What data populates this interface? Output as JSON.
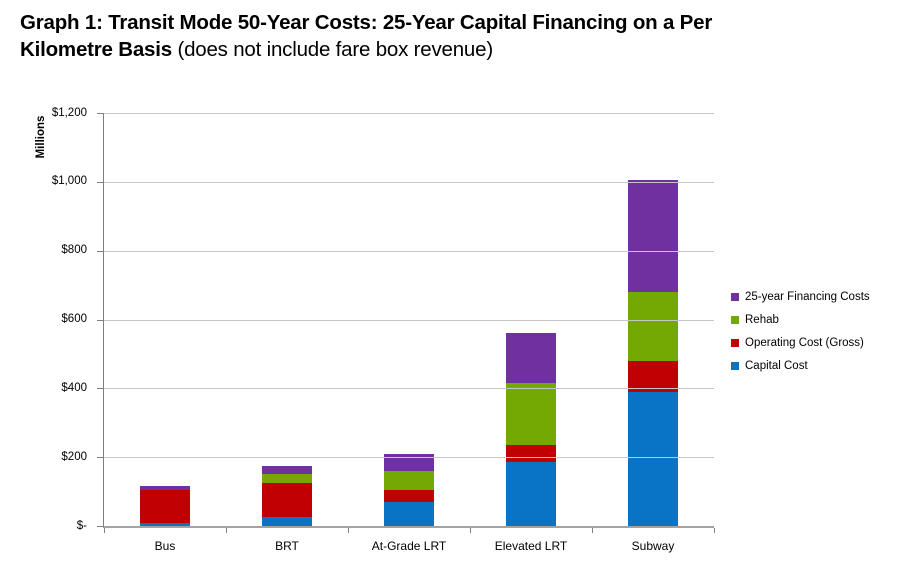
{
  "title": {
    "line1_bold": "Graph 1: Transit Mode 50-Year Costs: 25-Year Capital Financing on a Per",
    "line2_bold": "Kilometre Basis",
    "line2_normal": " (does not include fare box revenue)"
  },
  "chart_data": {
    "type": "bar",
    "stacked": true,
    "title": "Graph 1: Transit Mode 50-Year Costs: 25-Year Capital Financing on a Per Kilometre Basis (does not include fare box revenue)",
    "categories": [
      "Bus",
      "BRT",
      "At-Grade LRT",
      "Elevated LRT",
      "Subway"
    ],
    "series": [
      {
        "name": "Capital Cost",
        "color": "#0A74C4",
        "values": [
          8,
          25,
          70,
          185,
          390
        ]
      },
      {
        "name": "Operating Cost (Gross)",
        "color": "#C00000",
        "values": [
          98,
          100,
          35,
          50,
          90
        ]
      },
      {
        "name": "Rehab",
        "color": "#74A802",
        "values": [
          0,
          25,
          55,
          180,
          200
        ]
      },
      {
        "name": "25-year Financing Costs",
        "color": "#7030A0",
        "values": [
          9,
          25,
          50,
          145,
          325
        ]
      }
    ],
    "totals_est": [
      115,
      175,
      210,
      560,
      1005
    ],
    "ylabel": "Millions",
    "y_ticks": [
      "$1,200",
      "$1,000",
      "$800",
      "$600",
      "$400",
      "$200",
      "$-"
    ],
    "ylim": [
      0,
      1200
    ],
    "grid": true,
    "grid_color": "#C6C6C6",
    "axis_color": "#7F7F7F",
    "legend_position": "right",
    "legend_order_top_to_bottom": [
      "25-year Financing Costs",
      "Rehab",
      "Operating Cost (Gross)",
      "Capital Cost"
    ]
  }
}
